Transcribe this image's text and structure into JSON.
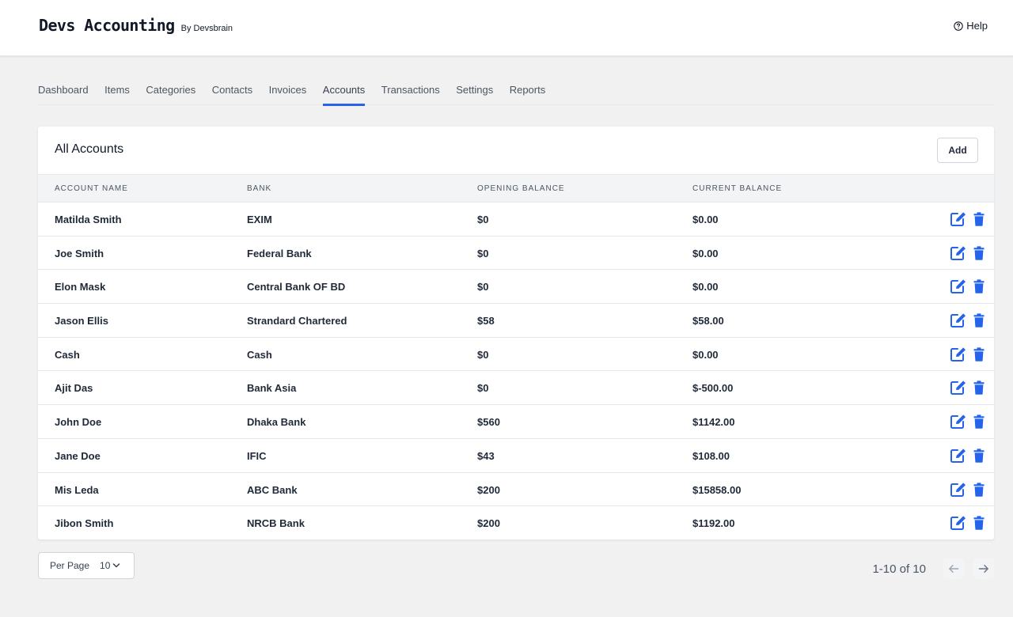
{
  "brand": {
    "name": "Devs Accounting",
    "by": "By Devsbrain"
  },
  "header": {
    "help_label": "Help"
  },
  "nav": {
    "tabs": [
      {
        "label": "Dashboard"
      },
      {
        "label": "Items"
      },
      {
        "label": "Categories"
      },
      {
        "label": "Contacts"
      },
      {
        "label": "Invoices"
      },
      {
        "label": "Accounts",
        "active": true
      },
      {
        "label": "Transactions"
      },
      {
        "label": "Settings"
      },
      {
        "label": "Reports"
      }
    ]
  },
  "accounts": {
    "title": "All Accounts",
    "add_label": "Add",
    "columns": [
      "Account Name",
      "Bank",
      "Opening Balance",
      "Current Balance"
    ],
    "rows": [
      {
        "name": "Matilda Smith",
        "bank": "EXIM",
        "opening": "$0",
        "current": "$0.00"
      },
      {
        "name": "Joe Smith",
        "bank": "Federal Bank",
        "opening": "$0",
        "current": "$0.00"
      },
      {
        "name": "Elon Mask",
        "bank": "Central Bank OF BD",
        "opening": "$0",
        "current": "$0.00"
      },
      {
        "name": "Jason Ellis",
        "bank": "Strandard Chartered",
        "opening": "$58",
        "current": "$58.00"
      },
      {
        "name": "Cash",
        "bank": "Cash",
        "opening": "$0",
        "current": "$0.00"
      },
      {
        "name": "Ajit Das",
        "bank": "Bank Asia",
        "opening": "$0",
        "current": "$-500.00"
      },
      {
        "name": "John Doe",
        "bank": "Dhaka Bank",
        "opening": "$560",
        "current": "$1142.00"
      },
      {
        "name": "Jane Doe",
        "bank": "IFIC",
        "opening": "$43",
        "current": "$108.00"
      },
      {
        "name": "Mis Leda",
        "bank": "ABC Bank",
        "opening": "$200",
        "current": "$15858.00"
      },
      {
        "name": "Jibon Smith",
        "bank": "NRCB Bank",
        "opening": "$200",
        "current": "$1192.00"
      }
    ],
    "row_icons": {
      "edit": "edit-icon",
      "delete": "trash-icon"
    }
  },
  "pagination": {
    "per_page_label": "Per Page",
    "per_page_value": "10",
    "range_text": "1-10 of 10"
  },
  "colors": {
    "accent": "#2563eb",
    "icon_blue": "#2563eb"
  }
}
